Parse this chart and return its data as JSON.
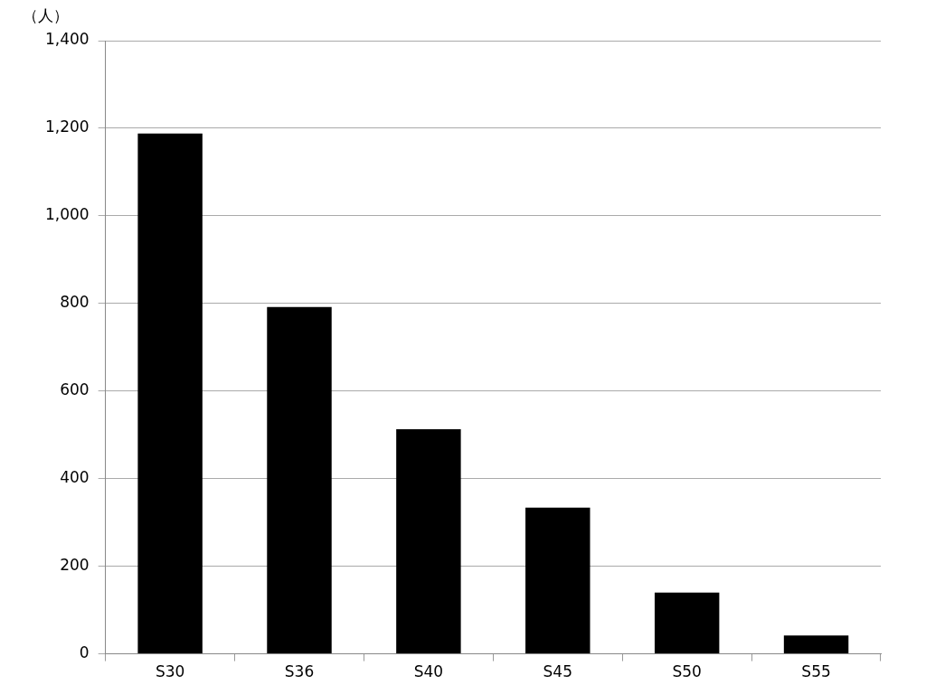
{
  "chart_data": {
    "type": "bar",
    "ylabel": "（人）",
    "categories": [
      "S30",
      "S36",
      "S40",
      "S45",
      "S50",
      "S55"
    ],
    "values": [
      1188,
      792,
      513,
      334,
      140,
      42
    ],
    "color": "#000000",
    "ylim": [
      0,
      1400
    ],
    "yticks": [
      0,
      200,
      400,
      600,
      800,
      {
        "value": 1000,
        "label": "1,000"
      },
      {
        "value": 1200,
        "label": "1,200"
      },
      {
        "value": 1400,
        "label": "1,400"
      }
    ],
    "grid": "y",
    "legend": false
  }
}
